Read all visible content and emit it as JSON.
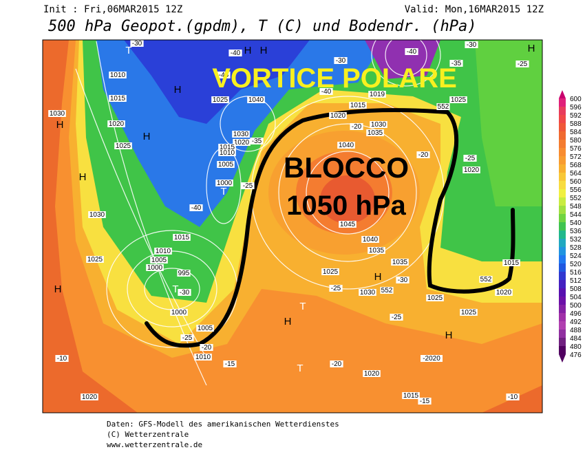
{
  "header": {
    "init": "Init : Fri,06MAR2015 12Z",
    "valid": "Valid: Mon,16MAR2015 12Z",
    "title": "500 hPa Geopot.(gpdm), T (C) und Bodendr. (hPa)"
  },
  "annotations": {
    "vortex": "VORTICE POLARE",
    "block": "BLOCCO",
    "block_pressure": "1050 hPa"
  },
  "colorbar": {
    "values": [
      600,
      596,
      592,
      588,
      584,
      580,
      576,
      572,
      568,
      564,
      560,
      556,
      552,
      548,
      544,
      540,
      536,
      532,
      528,
      524,
      520,
      516,
      512,
      508,
      504,
      500,
      496,
      492,
      488,
      484,
      480,
      476
    ],
    "colors": [
      "#c8006e",
      "#e0207a",
      "#e83c5c",
      "#f04848",
      "#f05838",
      "#f06a30",
      "#f47c30",
      "#f88c30",
      "#f89c30",
      "#f8b030",
      "#f8c838",
      "#f8dc40",
      "#f0f040",
      "#c8ec40",
      "#a0e040",
      "#70d440",
      "#40c450",
      "#20b88c",
      "#20a8c0",
      "#2094e0",
      "#2078f0",
      "#2058e0",
      "#3038d0",
      "#4420c0",
      "#5810b0",
      "#6c10a8",
      "#8420a4",
      "#a030a8",
      "#b040b0",
      "#9030a0",
      "#702080",
      "#500060"
    ]
  },
  "map_labels": [
    "T",
    "H",
    "H",
    "-30",
    "-40",
    "-45",
    "1010",
    "1015",
    "H",
    "1025",
    "1040",
    "1030",
    "H",
    "1020",
    "1025",
    "H",
    "1030",
    "1020",
    "-35",
    "1015",
    "1010",
    "1005",
    "1000",
    "T",
    "-25",
    "H",
    "1030",
    "-40",
    "1015",
    "1010",
    "1005",
    "1000",
    "995",
    "T",
    "-30",
    "1000",
    "1025",
    "H",
    "1005",
    "-25",
    "-20",
    "1010",
    "-15",
    "-10",
    "1020",
    "T",
    "H",
    "T",
    "1025",
    "-25",
    "1030",
    "552",
    "H",
    "1040",
    "1035",
    "1035",
    "-30",
    "1045",
    "1040",
    "1030",
    "1035",
    "1020",
    "1015",
    "1019",
    "-20",
    "-20",
    "552",
    "1025",
    "H",
    "-25",
    "-25",
    "1020",
    "-35",
    "-30",
    "1015",
    "552",
    "1020",
    "1025",
    "1025",
    "-25",
    "H",
    "-2020",
    "-20",
    "1020",
    "1015",
    "-15",
    "-10",
    "-40",
    "-30",
    "-40"
  ],
  "footer": [
    "Daten: GFS-Modell des amerikanischen Wetterdienstes",
    "(C) Wetterzentrale",
    "www.wetterzentrale.de"
  ]
}
